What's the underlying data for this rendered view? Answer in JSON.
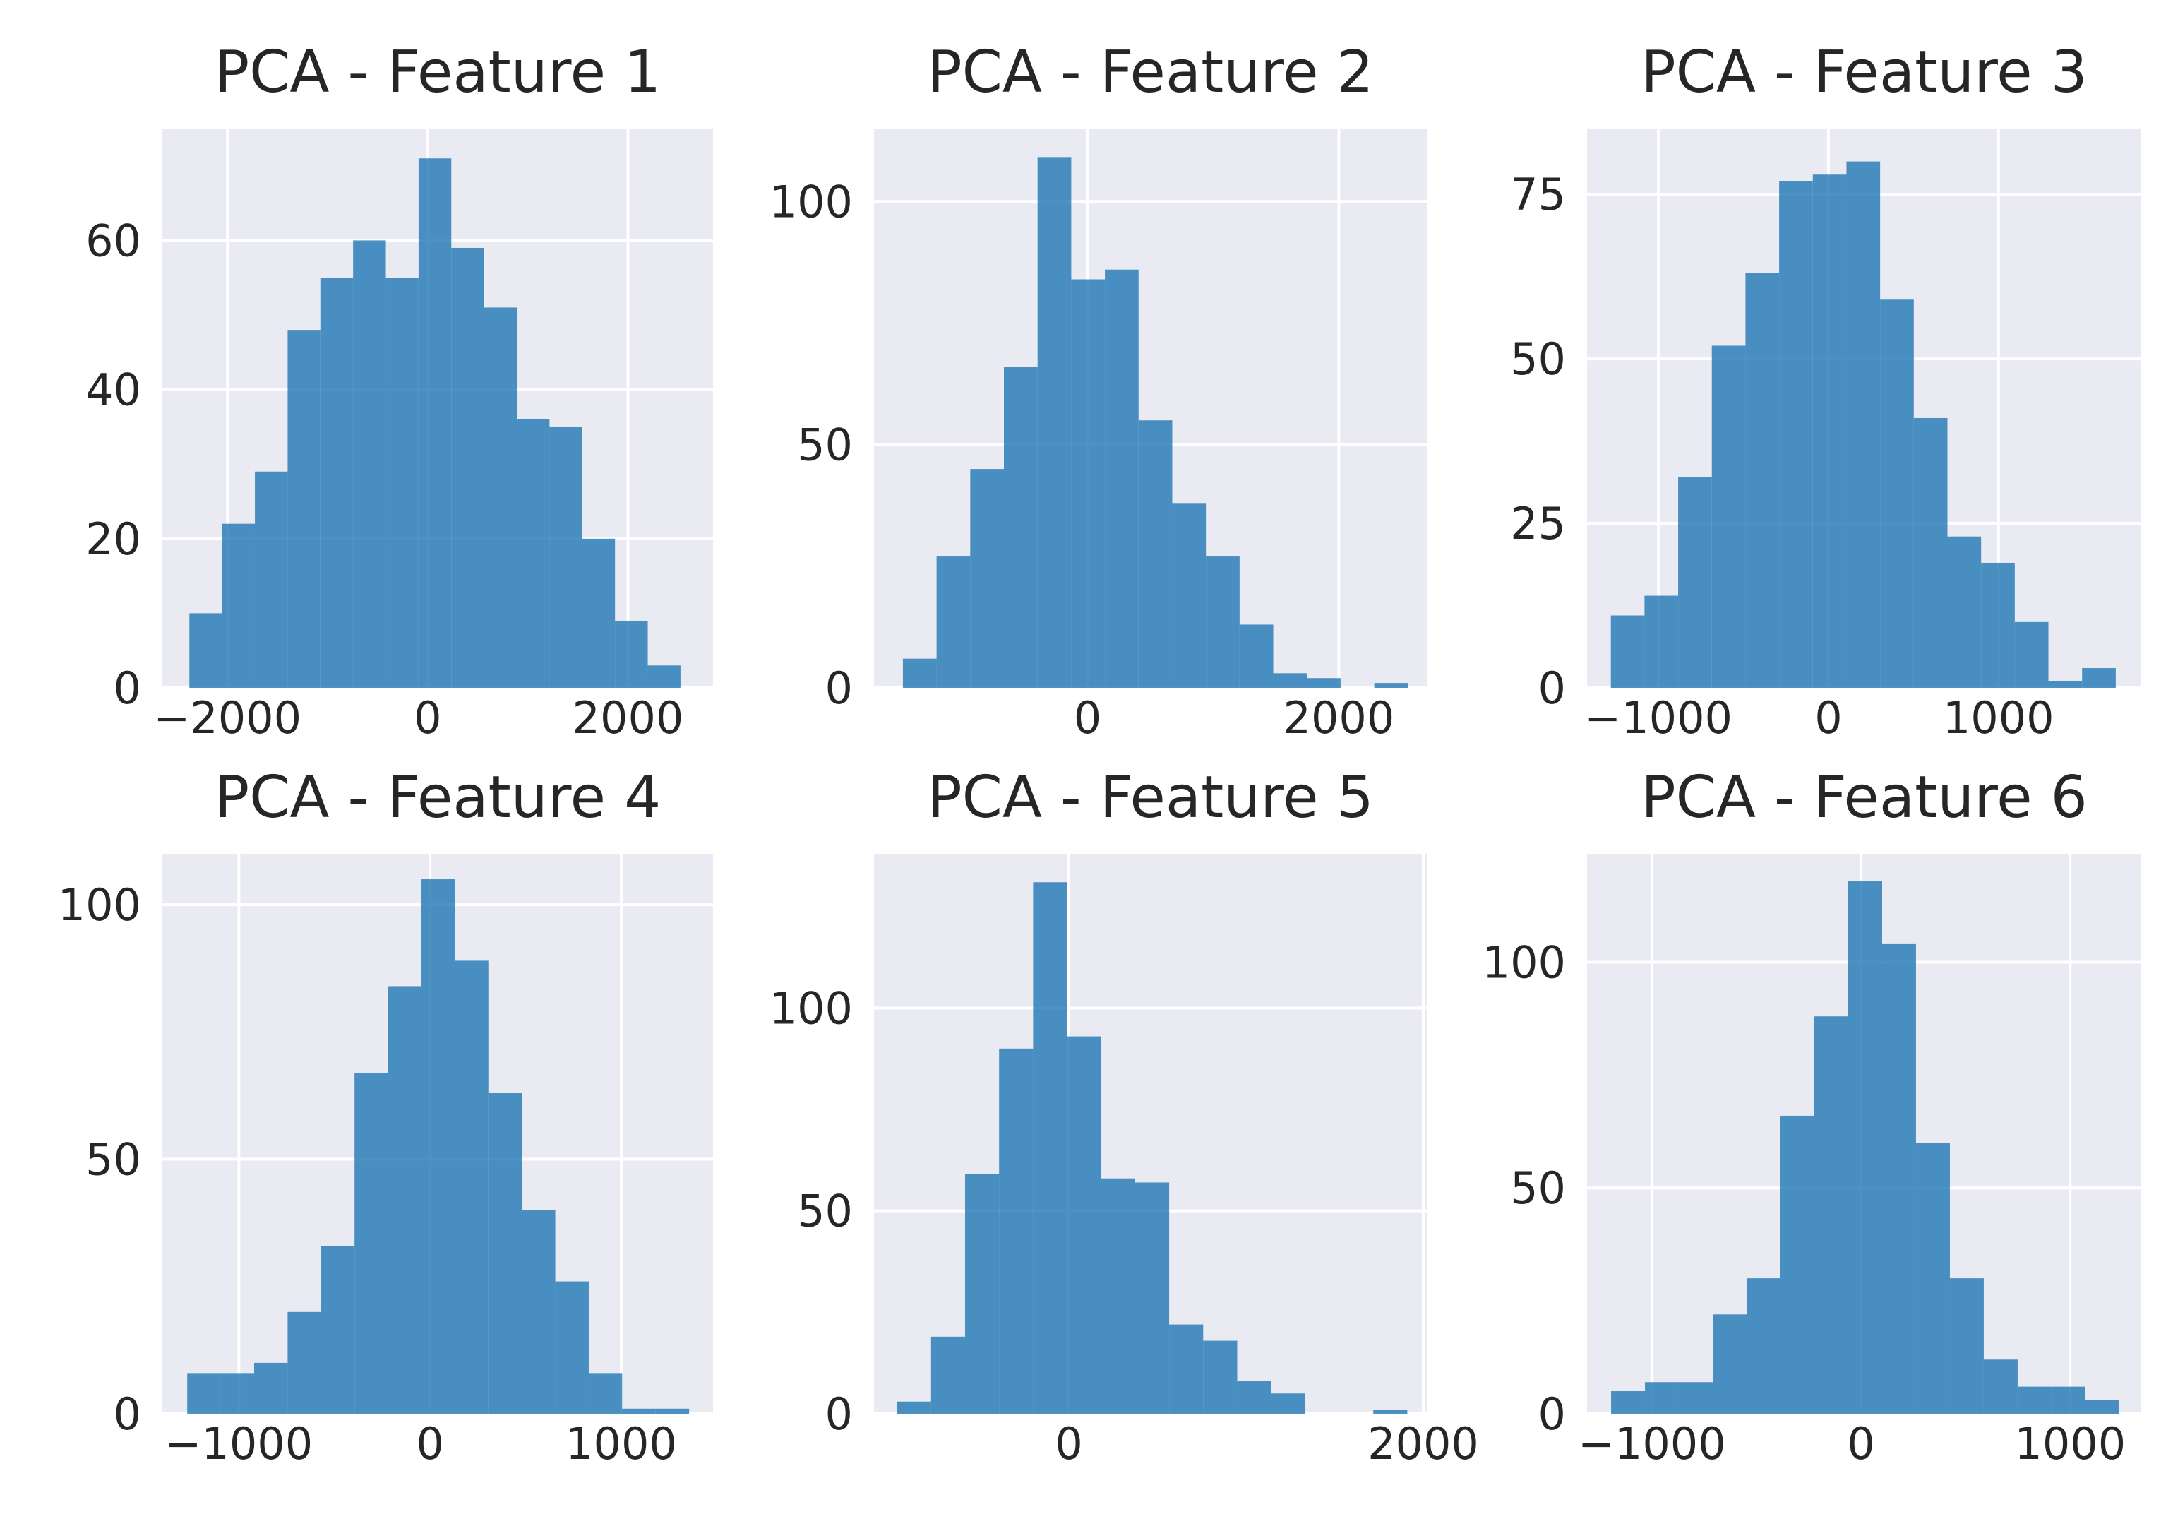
{
  "colors": {
    "bar": "#1f77b4",
    "axes_bg": "#eaeaf2",
    "grid": "#ffffff",
    "text": "#262626"
  },
  "chart_data": [
    {
      "type": "bar",
      "title": "PCA - Feature 1",
      "xlim": [
        -2650,
        2850
      ],
      "ylim": [
        0,
        75
      ],
      "xticks": [
        -2000,
        0,
        2000
      ],
      "xtick_labels": [
        "−2000",
        "0",
        "2000"
      ],
      "yticks": [
        0,
        20,
        40,
        60
      ],
      "ytick_labels": [
        "0",
        "20",
        "40",
        "60"
      ],
      "bin_start": -2380,
      "bin_width": 327,
      "values": [
        10,
        22,
        29,
        48,
        55,
        60,
        55,
        71,
        59,
        51,
        36,
        35,
        20,
        9,
        3
      ]
    },
    {
      "type": "bar",
      "title": "PCA - Feature 2",
      "xlim": [
        -1700,
        2700
      ],
      "ylim": [
        0,
        115
      ],
      "xticks": [
        0,
        2000
      ],
      "xtick_labels": [
        "0",
        "2000"
      ],
      "yticks": [
        0,
        50,
        100
      ],
      "ytick_labels": [
        "0",
        "50",
        "100"
      ],
      "bin_start": -1470,
      "bin_width": 268,
      "values": [
        6,
        27,
        45,
        66,
        109,
        84,
        86,
        55,
        38,
        27,
        13,
        3,
        2,
        0,
        1
      ]
    },
    {
      "type": "bar",
      "title": "PCA - Feature 3",
      "xlim": [
        -1420,
        1840
      ],
      "ylim": [
        0,
        85
      ],
      "xticks": [
        -1000,
        0,
        1000
      ],
      "xtick_labels": [
        "−1000",
        "0",
        "1000"
      ],
      "yticks": [
        0,
        25,
        50,
        75
      ],
      "ytick_labels": [
        "0",
        "25",
        "50",
        "75"
      ],
      "bin_start": -1280,
      "bin_width": 198,
      "values": [
        11,
        14,
        32,
        52,
        63,
        77,
        78,
        80,
        59,
        41,
        23,
        19,
        10,
        1,
        3
      ]
    },
    {
      "type": "bar",
      "title": "PCA - Feature 4",
      "xlim": [
        -1400,
        1480
      ],
      "ylim": [
        0,
        110
      ],
      "xticks": [
        -1000,
        0,
        1000
      ],
      "xtick_labels": [
        "−1000",
        "0",
        "1000"
      ],
      "yticks": [
        0,
        50,
        100
      ],
      "ytick_labels": [
        "0",
        "50",
        "100"
      ],
      "bin_start": -1270,
      "bin_width": 175,
      "values": [
        8,
        8,
        10,
        20,
        33,
        67,
        84,
        105,
        89,
        63,
        40,
        26,
        8,
        1,
        1
      ]
    },
    {
      "type": "bar",
      "title": "PCA - Feature 5",
      "xlim": [
        -1100,
        2020
      ],
      "ylim": [
        0,
        138
      ],
      "xticks": [
        0,
        2000
      ],
      "xtick_labels": [
        "0",
        "2000"
      ],
      "yticks": [
        0,
        50,
        100
      ],
      "ytick_labels": [
        "0",
        "50",
        "100"
      ],
      "bin_start": -970,
      "bin_width": 192,
      "values": [
        3,
        19,
        59,
        90,
        131,
        93,
        58,
        57,
        22,
        18,
        8,
        5,
        0,
        0,
        1
      ]
    },
    {
      "type": "bar",
      "title": "PCA - Feature 6",
      "xlim": [
        -1310,
        1340
      ],
      "ylim": [
        0,
        124
      ],
      "xticks": [
        -1000,
        0,
        1000
      ],
      "xtick_labels": [
        "−1000",
        "0",
        "1000"
      ],
      "yticks": [
        0,
        50,
        100
      ],
      "ytick_labels": [
        "0",
        "50",
        "100"
      ],
      "bin_start": -1195,
      "bin_width": 162,
      "values": [
        5,
        7,
        7,
        22,
        30,
        66,
        88,
        118,
        104,
        60,
        30,
        12,
        6,
        6,
        3
      ]
    }
  ]
}
